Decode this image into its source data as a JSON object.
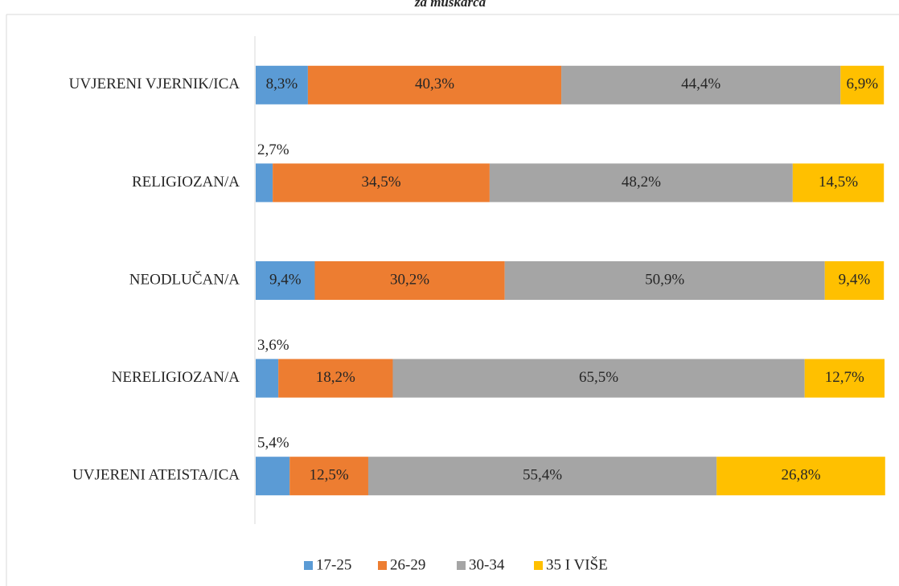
{
  "chart_data": {
    "type": "stacked_bar_horizontal",
    "title": "za muškarca",
    "categories": [
      "UVJERENI VJERNIK/ICA",
      "RELIGIOZAN/A",
      "NEODLUČAN/A",
      "NERELIGIOZAN/A",
      "UVJERENI ATEISTA/ICA"
    ],
    "series": [
      {
        "name": "17-25",
        "color": "#5b9bd5",
        "values": [
          8.3,
          2.7,
          9.4,
          3.6,
          5.4
        ],
        "value_labels": [
          "8,3%",
          "2,7%",
          "9,4%",
          "3,6%",
          "5,4%"
        ]
      },
      {
        "name": "26-29",
        "color": "#ed7d31",
        "values": [
          40.3,
          34.5,
          30.2,
          18.2,
          12.5
        ],
        "value_labels": [
          "40,3%",
          "34,5%",
          "30,2%",
          "18,2%",
          "12,5%"
        ]
      },
      {
        "name": "30-34",
        "color": "#a5a5a5",
        "values": [
          44.4,
          48.2,
          50.9,
          65.5,
          55.4
        ],
        "value_labels": [
          "44,4%",
          "48,2%",
          "50,9%",
          "65,5%",
          "55,4%"
        ]
      },
      {
        "name": "35 I VIŠE",
        "color": "#ffc000",
        "values": [
          6.9,
          14.5,
          9.4,
          12.7,
          26.8
        ],
        "value_labels": [
          "6,9%",
          "14,5%",
          "9,4%",
          "12,7%",
          "26,8%"
        ]
      }
    ],
    "legend": "bottom"
  }
}
